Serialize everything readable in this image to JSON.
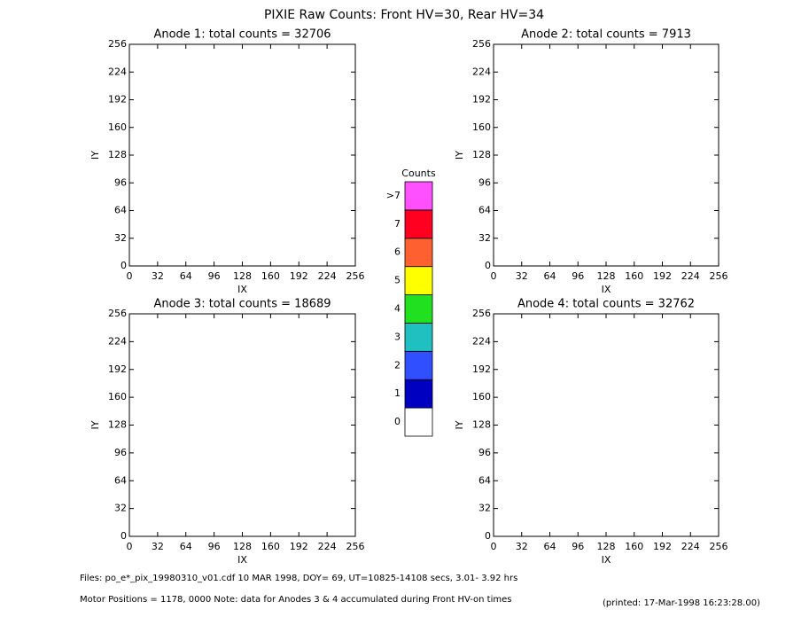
{
  "title": "PIXIE Raw Counts:  Front HV=30, Rear HV=34",
  "chart_data": [
    {
      "type": "heatmap",
      "title": "Anode 1: total counts = 32706",
      "xlabel": "IX",
      "ylabel": "IY",
      "xlim": [
        0,
        256
      ],
      "ylim": [
        0,
        256
      ],
      "xticks": [
        0,
        32,
        64,
        96,
        128,
        160,
        192,
        224,
        256
      ],
      "yticks": [
        0,
        32,
        64,
        96,
        128,
        160,
        192,
        224,
        256
      ]
    },
    {
      "type": "heatmap",
      "title": "Anode 2: total counts = 7913",
      "xlabel": "IX",
      "ylabel": "IY",
      "xlim": [
        0,
        256
      ],
      "ylim": [
        0,
        256
      ],
      "xticks": [
        0,
        32,
        64,
        96,
        128,
        160,
        192,
        224,
        256
      ],
      "yticks": [
        0,
        32,
        64,
        96,
        128,
        160,
        192,
        224,
        256
      ]
    },
    {
      "type": "heatmap",
      "title": "Anode 3: total counts = 18689",
      "xlabel": "IX",
      "ylabel": "IY",
      "xlim": [
        0,
        256
      ],
      "ylim": [
        0,
        256
      ],
      "xticks": [
        0,
        32,
        64,
        96,
        128,
        160,
        192,
        224,
        256
      ],
      "yticks": [
        0,
        32,
        64,
        96,
        128,
        160,
        192,
        224,
        256
      ]
    },
    {
      "type": "heatmap",
      "title": "Anode 4: total counts = 32762",
      "xlabel": "IX",
      "ylabel": "IY",
      "xlim": [
        0,
        256
      ],
      "ylim": [
        0,
        256
      ],
      "xticks": [
        0,
        32,
        64,
        96,
        128,
        160,
        192,
        224,
        256
      ],
      "yticks": [
        0,
        32,
        64,
        96,
        128,
        160,
        192,
        224,
        256
      ]
    }
  ],
  "colorbar": {
    "title": "Counts",
    "levels": [
      0,
      1,
      2,
      3,
      4,
      5,
      6,
      7,
      {
        "value": 8,
        "label": ">7"
      }
    ],
    "colors": [
      "#ffffff",
      "#0000c0",
      "#3050ff",
      "#20c0c0",
      "#20e020",
      "#ffff00",
      "#ff6030",
      "#ff0020",
      "#ff50ff"
    ]
  },
  "footer": {
    "files": "Files: po_e*_pix_19980310_v01.cdf    10 MAR 1998, DOY= 69, UT=10825-14108 secs,  3.01- 3.92 hrs",
    "motor": "Motor Positions = 1178, 0000   Note: data for Anodes 3 & 4 accumulated during Front HV-on times",
    "printed": "(printed: 17-Mar-1998 16:23:28.00)"
  }
}
